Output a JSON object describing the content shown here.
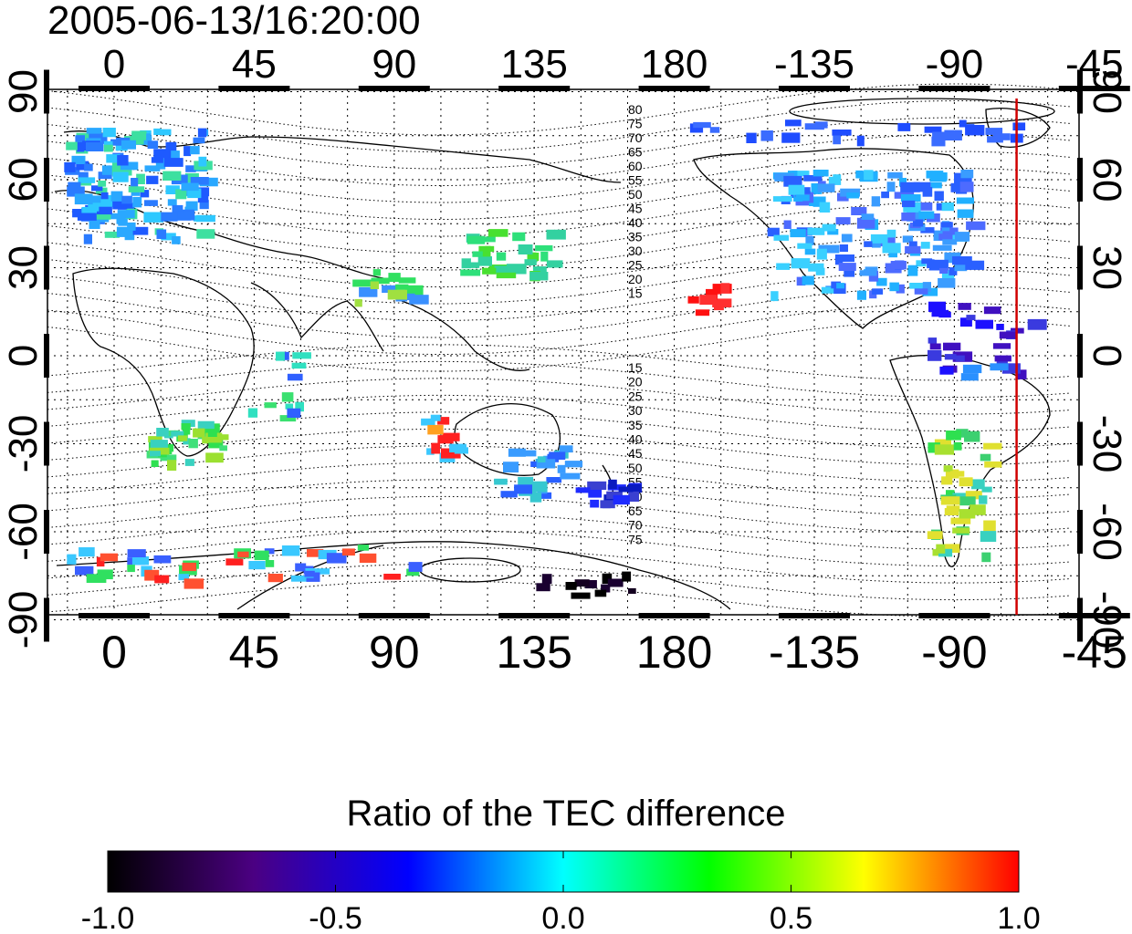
{
  "title": "2005-06-13/16:20:00",
  "colorbar": {
    "title": "Ratio of the TEC difference",
    "ticks": [
      "-1.0",
      "-0.5",
      "0.0",
      "0.5",
      "1.0"
    ],
    "range": [
      -1.0,
      1.0
    ],
    "colors": [
      "#000000",
      "#4b0082",
      "#0000ff",
      "#00ffff",
      "#00ff00",
      "#ffff00",
      "#ff0000"
    ]
  },
  "map": {
    "lon_ticks_top": [
      "0",
      "45",
      "90",
      "135",
      "180",
      "-135",
      "-90",
      "-45"
    ],
    "lon_ticks_bottom": [
      "0",
      "45",
      "90",
      "135",
      "180",
      "-135",
      "-90",
      "-45"
    ],
    "lat_ticks_left": [
      "90",
      "60",
      "30",
      "0",
      "-30",
      "-60",
      "-90"
    ],
    "lat_ticks_right": [
      "90",
      "60",
      "30",
      "0",
      "-30",
      "-60",
      "-90"
    ],
    "contour_labels_north": [
      "80",
      "75",
      "70",
      "65",
      "60",
      "55",
      "50",
      "45",
      "40",
      "35",
      "30",
      "25",
      "20",
      "15"
    ],
    "contour_labels_south": [
      "15",
      "20",
      "25",
      "30",
      "35",
      "40",
      "45",
      "50",
      "55",
      "60",
      "65",
      "70",
      "75"
    ],
    "meridian_marker_lon": -70,
    "marker_color": "#d00000"
  }
}
